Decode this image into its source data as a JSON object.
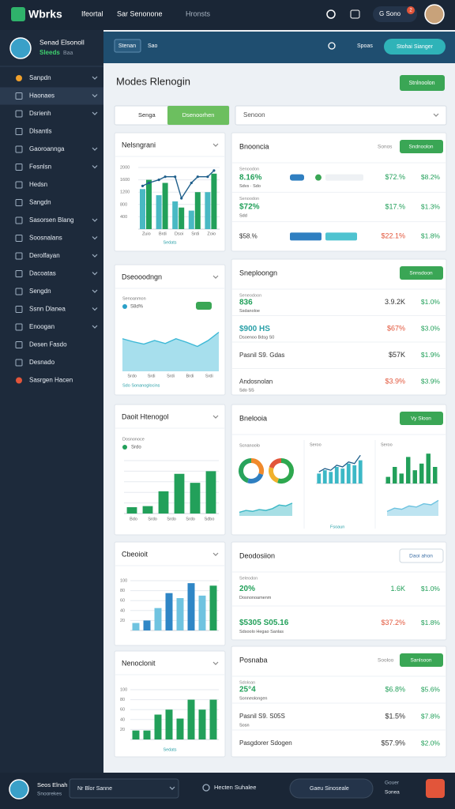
{
  "topbar": {
    "logo": "Wbrks",
    "nav": [
      "Ifeortal",
      "Sar Senonone",
      "Hronsts"
    ],
    "badge": "2",
    "account": "G Sono"
  },
  "sidebar": {
    "user": "Senad Elsonoll",
    "status": "Sleeds",
    "status_extra": "Baa",
    "active": 1,
    "items": [
      {
        "label": "Sanpdn",
        "chevron": true
      },
      {
        "label": "Haonaes",
        "chevron": true
      },
      {
        "label": "Dsrienh",
        "chevron": true
      },
      {
        "label": "Dlsantls",
        "chevron": false
      },
      {
        "label": "Gaoroannga",
        "chevron": true
      },
      {
        "label": "Fesnlsn",
        "chevron": true
      },
      {
        "label": "Hedsn",
        "chevron": false
      },
      {
        "label": "Sangdn",
        "chevron": false
      },
      {
        "label": "Sasorsen Blang",
        "chevron": true
      },
      {
        "label": "Soosnalans",
        "chevron": true
      },
      {
        "label": "Derolfayan",
        "chevron": true
      },
      {
        "label": "Dacoatas",
        "chevron": true
      },
      {
        "label": "Sengdn",
        "chevron": true
      },
      {
        "label": "Ssnn Dlanea",
        "chevron": true
      },
      {
        "label": "Enoogan",
        "chevron": true
      },
      {
        "label": "Desen Fasdo",
        "chevron": false
      },
      {
        "label": "Desnado",
        "chevron": false
      },
      {
        "label": "Sasrgen Hacen",
        "chevron": false
      }
    ]
  },
  "toolbar": {
    "filter": "Stenan",
    "tag": "Sao",
    "link": "Spoas",
    "action": "Stohai Sianger"
  },
  "page": {
    "title": "Modes Rlenogin",
    "button": "Stnlnoolon"
  },
  "tabs": {
    "items": [
      "Senga",
      "Dsenoorhen"
    ],
    "active": 1,
    "dropdown": "Senoon"
  },
  "left_cards": [
    {
      "title": "Nelsngrani",
      "chart": {
        "type": "bar-line",
        "ylim": [
          0,
          2000
        ],
        "yticks": [
          400,
          800,
          1200,
          1600,
          2000
        ],
        "xlabels": [
          "Zuio",
          "Brdi",
          "Dsoi",
          "Srdi",
          "Zoio"
        ],
        "series": [
          {
            "color": "#49b9c4",
            "values": [
              1300,
              1100,
              900,
              600,
              1200
            ]
          },
          {
            "color": "#22a05a",
            "values": [
              1600,
              1500,
              700,
              1200,
              1800
            ]
          }
        ],
        "line": {
          "color": "#1f5f8b",
          "values": [
            1400,
            1500,
            1600,
            1700,
            1700,
            1000,
            1500,
            1700,
            1700,
            1900
          ]
        },
        "legend": "Sedats"
      }
    },
    {
      "title": "Dseooodngn",
      "chart": {
        "type": "area",
        "caption": "Senoanmon",
        "legend": "S8d%",
        "color": "#3cb8d6",
        "ylim": [
          0,
          100
        ],
        "values": [
          55,
          50,
          46,
          52,
          47,
          55,
          49,
          42,
          52,
          66
        ],
        "xlabels": [
          "Srdo",
          "Srdi",
          "Srdi",
          "Brdi",
          "Srdi"
        ],
        "footer": "Sdo Sonanoglocins"
      }
    },
    {
      "title": "Daoit Htenogol",
      "chart": {
        "type": "bar",
        "caption": "Dosnonoce",
        "legend": "Srdo",
        "ylim": [
          0,
          100
        ],
        "yticks": [
          20,
          40,
          60,
          80,
          100
        ],
        "color": "#22a05a",
        "values": [
          12,
          14,
          42,
          75,
          58,
          80
        ],
        "xlabels": [
          "Bdo",
          "Srdo",
          "Srdo",
          "Srdo",
          "Sdbo"
        ]
      }
    },
    {
      "title": "Cbeoioit",
      "chart": {
        "type": "bar",
        "ylim": [
          0,
          100
        ],
        "yticks": [
          20,
          40,
          60,
          80,
          100
        ],
        "colors": [
          "#6fc3e0",
          "#2f86c6",
          "#6fc3e0",
          "#2f86c6",
          "#6fc3e0",
          "#2f86c6",
          "#6fc3e0",
          "#22a05a"
        ],
        "values": [
          15,
          20,
          45,
          75,
          65,
          95,
          70,
          90
        ]
      }
    },
    {
      "title": "Nenoclonit",
      "chart": {
        "type": "bar",
        "legend": "Sedats",
        "ylim": [
          0,
          100
        ],
        "yticks": [
          20,
          40,
          60,
          80,
          100
        ],
        "color": "#22a05a",
        "values": [
          18,
          18,
          50,
          60,
          42,
          80,
          60,
          80
        ]
      }
    }
  ],
  "right_cards": [
    {
      "title": "Bnooncia",
      "meta": "Sonos",
      "button": "Sndnoolon",
      "rows": [
        {
          "caption": "Senoodon",
          "title": "8.16%",
          "title_color": "#22a05a",
          "sub": "Sdvs · Sdo",
          "v1": "$72.%",
          "v1_color": "#22a05a",
          "v2": "$8.2%"
        },
        {
          "caption": "Senoodon",
          "title": "$72%",
          "title_color": "#22a05a",
          "sub": "Sdd",
          "v1": "$17.%",
          "v1_color": "#22a05a",
          "v2": "$1.3%"
        },
        {
          "title": "$58.%",
          "title_color": "#333",
          "v1": "$22.1%",
          "v1_color": "#e2553a",
          "v2": "$1.8%"
        }
      ]
    },
    {
      "title": "Sneploongn",
      "button": "Snnsdoon",
      "rows": [
        {
          "caption": "Seneodoon",
          "title": "836",
          "title_color": "#22a05a",
          "sub": "Ssdanoloe",
          "v1": "3.9.2K",
          "v1_color": "#333",
          "v2": "$1.0%"
        },
        {
          "title": "$900 HS",
          "title_color": "#2aa0a8",
          "sub": "Dsoenoo Bdsg S0",
          "v1": "$67%",
          "v1_color": "#e2553a",
          "v2": "$3.0%"
        },
        {
          "title": "Pasnil S9. Gdas",
          "title_color": "#333",
          "v1": "$57K",
          "v1_color": "#333",
          "v2": "$1.9%"
        },
        {
          "title": "Andosnolan",
          "title_color": "#333",
          "sub": "Sdo SS",
          "v1": "$3.9%",
          "v1_color": "#e2553a",
          "v2": "$3.9%"
        }
      ]
    },
    {
      "title": "Bnelooia",
      "button": "Vy Sloon",
      "captions": [
        "Scnanoolo",
        "Seroo",
        "Seroo",
        "Fsoaun"
      ],
      "charts": [
        {
          "type": "donut",
          "values": [
            30,
            25,
            45
          ],
          "colors": [
            "#f08a2c",
            "#2f7fc1",
            "#28a35c"
          ]
        },
        {
          "type": "donut",
          "values": [
            55,
            25,
            20
          ],
          "colors": [
            "#2ea84f",
            "#f0b12c",
            "#e2553a"
          ]
        },
        {
          "type": "area",
          "ylim": [
            0,
            100
          ],
          "values": [
            20,
            30,
            25,
            35,
            30,
            40,
            60,
            55,
            70
          ],
          "color": "#3cb8c6"
        },
        {
          "type": "bar-line",
          "ylim": [
            0,
            100
          ],
          "values": [
            30,
            40,
            35,
            50,
            45,
            60,
            55,
            70
          ],
          "line": [
            35,
            45,
            40,
            55,
            50,
            65,
            60,
            85
          ],
          "color": "#3cb8c6"
        },
        {
          "type": "bar",
          "ylim": [
            0,
            100
          ],
          "values": [
            20,
            50,
            30,
            80,
            40,
            60,
            90,
            50
          ],
          "color": "#22a05a"
        },
        {
          "type": "area",
          "ylim": [
            0,
            100
          ],
          "values": [
            20,
            35,
            30,
            45,
            40,
            55,
            50,
            70
          ],
          "color": "#6fc3e0"
        }
      ]
    },
    {
      "title": "Deodosiion",
      "button": "Daoi ahon",
      "rows": [
        {
          "caption": "Seleodon",
          "title": "20%",
          "title_color": "#22a05a",
          "sub": "Dosnonoamenm",
          "v1": "1.6K",
          "v1_color": "#22a05a",
          "v2": "$1.0%"
        },
        {
          "title": "$5305 S05.16",
          "title_color": "#22a05a",
          "sub": "Sdsoolo   Hegao Sanlas",
          "v1": "$37.2%",
          "v1_color": "#e2553a",
          "v2": "$1.8%"
        }
      ]
    },
    {
      "title": "Posnaba",
      "meta": "Sooloo",
      "button": "Sanlsoon",
      "rows": [
        {
          "caption": "Sdoloan",
          "title": "25°4",
          "title_color": "#22a05a",
          "sub": "Sonneolongen",
          "v1": "$6.8%",
          "v1_color": "#22a05a",
          "v2": "$5.6%"
        },
        {
          "title": "Pasnil S9. S05S",
          "title_color": "#333",
          "sub": "Sosn",
          "v1": "$1.5%",
          "v1_color": "#333",
          "v2": "$7.8%"
        },
        {
          "title": "Pasgdorer Sdogen",
          "title_color": "#333",
          "v1": "$57.9%",
          "v1_color": "#333",
          "v2": "$2.0%"
        }
      ]
    }
  ],
  "bottombar": {
    "user": "Seos Elnah",
    "role": "Snoorekes",
    "dropdown": "Nr Blor Sanne",
    "status": "Hecten Suhalee",
    "search": "Gaeu Sinoseale",
    "info": [
      "Gouer",
      "Sonea"
    ]
  }
}
